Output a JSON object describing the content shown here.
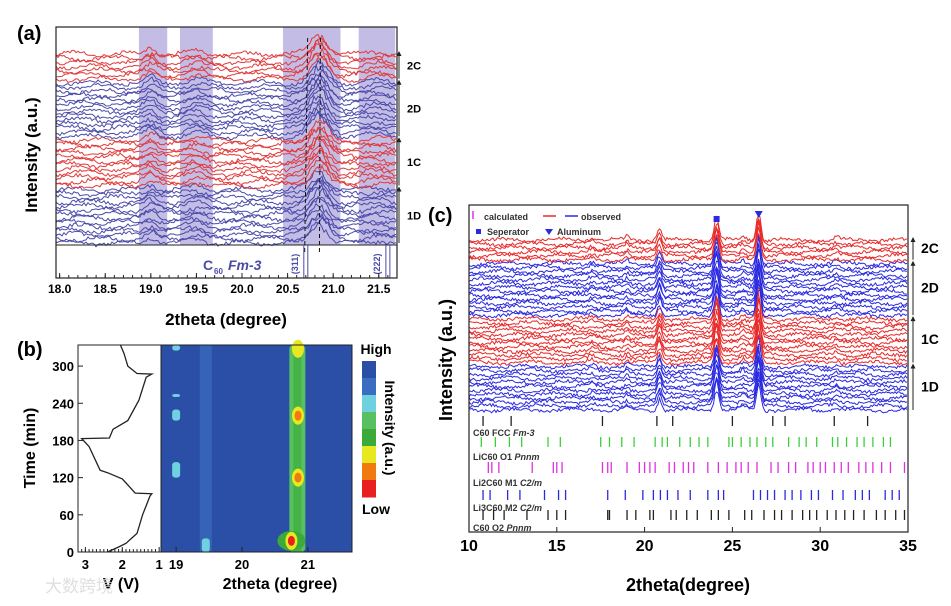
{
  "chart_data": [
    {
      "panel": "(a)",
      "type": "line",
      "xlabel": "2theta (degree)",
      "ylabel": "Intensity (a.u.)",
      "xlim": [
        17.96,
        21.7
      ],
      "xticks": [
        18.0,
        18.5,
        19.0,
        19.5,
        20.0,
        20.5,
        21.0,
        21.5
      ],
      "xtick_labels": [
        "18.0",
        "18.5",
        "19.0",
        "19.5",
        "20.0",
        "20.5",
        "21.0",
        "21.5"
      ],
      "shaded_ranges": [
        [
          18.87,
          19.18
        ],
        [
          19.32,
          19.68
        ],
        [
          20.45,
          21.08
        ],
        [
          21.28,
          21.68
        ]
      ],
      "dashed_lines": [
        20.72,
        20.86
      ],
      "groups": [
        {
          "name": "2C",
          "color": "#e03a3a",
          "count": 7
        },
        {
          "name": "2D",
          "color": "#4a4aa8",
          "count": 14
        },
        {
          "name": "1C",
          "color": "#e03a3a",
          "count": 12
        },
        {
          "name": "1D",
          "color": "#4a4aa8",
          "count": 14
        }
      ],
      "peaks": [
        {
          "x": 19.0,
          "h": 0.5,
          "w": 0.06
        },
        {
          "x": 19.5,
          "h": 0.3,
          "w": 0.08
        },
        {
          "x": 20.85,
          "h": 1.6,
          "w": 0.09
        },
        {
          "x": 21.5,
          "h": 0.2,
          "w": 0.1
        }
      ],
      "reference": {
        "label_main": "C",
        "label_sub": "60",
        "label_group": "Fm-3",
        "color": "#4a4aa8",
        "reflections": [
          {
            "x": 20.7,
            "label": "(311)"
          },
          {
            "x": 21.6,
            "label": "(222)"
          }
        ]
      }
    },
    {
      "panel": "(b)",
      "type": "heatmap",
      "voltage": {
        "xlabel": "V (V)",
        "xlim": [
          3.2,
          0.95
        ],
        "xticks": [
          3,
          2,
          1
        ],
        "xtick_labels": [
          "3",
          "2",
          "1"
        ],
        "points": [
          [
            2.4,
            0
          ],
          [
            2.1,
            8
          ],
          [
            1.9,
            14
          ],
          [
            1.6,
            30
          ],
          [
            1.45,
            60
          ],
          [
            1.25,
            90
          ],
          [
            1.2,
            94
          ],
          [
            1.65,
            95
          ],
          [
            1.8,
            105
          ],
          [
            2.0,
            118
          ],
          [
            2.4,
            128
          ],
          [
            2.6,
            132
          ],
          [
            2.9,
            170
          ],
          [
            3.1,
            183
          ],
          [
            2.35,
            184
          ],
          [
            2.25,
            198
          ],
          [
            1.85,
            212
          ],
          [
            1.55,
            245
          ],
          [
            1.35,
            282
          ],
          [
            1.2,
            287
          ],
          [
            1.6,
            288
          ],
          [
            1.85,
            300
          ],
          [
            1.95,
            320
          ],
          [
            2.05,
            334
          ]
        ]
      },
      "xlabel": "2theta (degree)",
      "ylabel": "Time (min)",
      "xlim": [
        18.77,
        21.67
      ],
      "ylim": [
        0,
        334
      ],
      "xticks": [
        19,
        20,
        21
      ],
      "xtick_labels": [
        "19",
        "20",
        "21"
      ],
      "yticks": [
        0,
        60,
        120,
        180,
        240,
        300
      ],
      "ytick_labels": [
        "0",
        "60",
        "120",
        "180",
        "240",
        "300"
      ],
      "colorbar": {
        "title": "Intensity (a.u.)",
        "high": "High",
        "low": "Low",
        "colors": [
          "#2b4ea6",
          "#3a6cc0",
          "#6fd0e0",
          "#58c060",
          "#3aaa3a",
          "#e8e820",
          "#f07a10",
          "#e82020"
        ]
      },
      "hot_spots": [
        {
          "x": 20.75,
          "t": 18,
          "level": 7
        },
        {
          "x": 20.85,
          "t": 120,
          "level": 6
        },
        {
          "x": 20.85,
          "t": 220,
          "level": 6
        },
        {
          "x": 20.85,
          "t": 328,
          "level": 5
        }
      ]
    },
    {
      "panel": "(c)",
      "type": "line",
      "xlabel": "2theta(degree)",
      "ylabel": "Intensity (a.u.)",
      "xlim": [
        10,
        35
      ],
      "xticks": [
        10,
        15,
        20,
        25,
        30,
        35
      ],
      "xtick_labels": [
        "10",
        "15",
        "20",
        "25",
        "30",
        "35"
      ],
      "legend": {
        "calculated": "calculated",
        "observed": "observed",
        "separator": "Seperator",
        "aluminum": "Aluminum"
      },
      "markers": [
        {
          "x": 24.1,
          "type": "square",
          "label": "Seperator"
        },
        {
          "x": 26.5,
          "type": "triangle",
          "label": "Aluminum"
        }
      ],
      "groups": [
        {
          "name": "2C",
          "color": "#e82a2a",
          "count": 6
        },
        {
          "name": "2D",
          "color": "#2a2ae0",
          "count": 14
        },
        {
          "name": "1C",
          "color": "#e82a2a",
          "count": 12
        },
        {
          "name": "1D",
          "color": "#2a2ae0",
          "count": 12
        }
      ],
      "peaks": [
        {
          "x": 17.0,
          "h": 0.3,
          "w": 0.15
        },
        {
          "x": 19.0,
          "h": 0.4,
          "w": 0.1
        },
        {
          "x": 20.85,
          "h": 1.5,
          "w": 0.12
        },
        {
          "x": 24.1,
          "h": 3.0,
          "w": 0.13
        },
        {
          "x": 25.6,
          "h": 0.4,
          "w": 0.15
        },
        {
          "x": 26.5,
          "h": 3.6,
          "w": 0.12
        },
        {
          "x": 30.9,
          "h": 0.3,
          "w": 0.15
        }
      ],
      "phases": [
        {
          "name": "C60 FCC",
          "group": "Fm-3",
          "color": "#222222",
          "reflections": [
            10.8,
            12.4,
            17.6,
            20.7,
            21.6,
            25.0,
            27.3,
            28.0,
            30.8,
            32.7
          ]
        },
        {
          "name": "LiC60 O1",
          "group": "Pnnm",
          "color": "#3ad03a",
          "reflections": [
            10.7,
            11.5,
            12.3,
            13.0,
            14.5,
            15.2,
            17.5,
            18.0,
            18.7,
            19.4,
            20.6,
            21.0,
            21.3,
            22.0,
            22.6,
            23.1,
            23.6,
            24.8,
            25.0,
            25.5,
            26.0,
            26.4,
            26.9,
            27.3,
            28.2,
            28.8,
            29.2,
            29.8,
            30.7,
            31.0,
            31.5,
            32.1,
            32.5,
            33.0,
            33.6,
            34.0
          ]
        },
        {
          "name": "Li2C60 M1",
          "group": "C2/m",
          "color": "#e030e0",
          "reflections": [
            11.1,
            11.3,
            11.7,
            13.6,
            14.8,
            15.0,
            15.3,
            17.6,
            17.9,
            18.1,
            19.0,
            19.7,
            20.0,
            20.3,
            20.6,
            21.4,
            21.7,
            22.2,
            22.5,
            22.8,
            23.6,
            24.2,
            24.7,
            25.2,
            25.5,
            25.9,
            26.4,
            27.2,
            27.6,
            28.2,
            28.6,
            29.3,
            29.6,
            30.0,
            30.3,
            30.8,
            31.2,
            31.6,
            32.2,
            32.6,
            33.0,
            33.5,
            34.0,
            34.8
          ]
        },
        {
          "name": "Li3C60 M2",
          "group": "C2/m",
          "color": "#2a2ae0",
          "reflections": [
            10.8,
            11.2,
            12.2,
            12.9,
            14.3,
            15.1,
            15.5,
            17.9,
            18.9,
            19.9,
            20.5,
            20.9,
            21.3,
            21.9,
            22.6,
            23.6,
            24.2,
            24.5,
            26.2,
            26.6,
            27.0,
            27.4,
            28.0,
            28.4,
            28.9,
            29.5,
            29.9,
            30.7,
            31.3,
            32.0,
            32.4,
            32.8,
            33.7,
            34.1,
            34.5
          ]
        },
        {
          "name": "C60 O2",
          "group": "Pnnm",
          "color": "#222222",
          "reflections": [
            10.8,
            11.4,
            12.0,
            13.3,
            14.5,
            15.0,
            15.5,
            17.9,
            18.0,
            19.0,
            19.5,
            20.3,
            20.5,
            21.5,
            21.8,
            22.4,
            23.0,
            23.8,
            24.2,
            24.8,
            25.7,
            26.1,
            26.8,
            27.4,
            27.8,
            28.4,
            29.0,
            29.4,
            29.8,
            30.4,
            30.9,
            31.4,
            31.9,
            32.5,
            33.2,
            33.7,
            34.3,
            34.8
          ]
        }
      ]
    }
  ],
  "watermark": "大数跨境"
}
